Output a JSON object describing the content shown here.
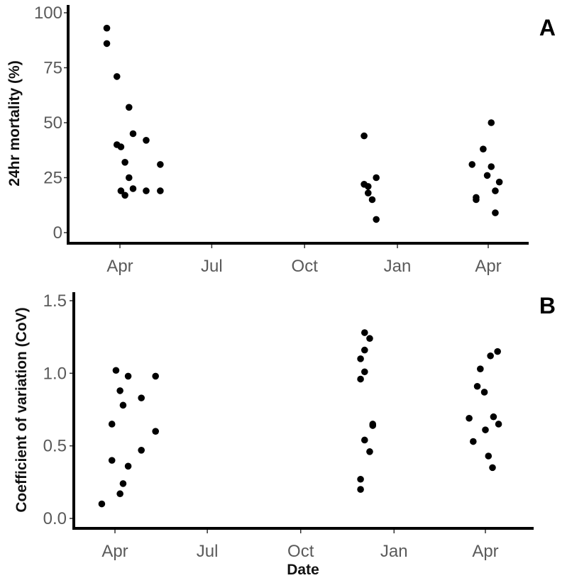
{
  "chart_data": [
    {
      "type": "scatter",
      "panel_label": "A",
      "xlabel": "",
      "ylabel": "24hr mortality (%)",
      "ylim": [
        -5,
        103
      ],
      "x_ticks": [
        "Apr",
        "Jul",
        "Oct",
        "Jan",
        "Apr"
      ],
      "y_ticks": [
        "0",
        "25",
        "50",
        "75",
        "100"
      ],
      "grid": false,
      "legend": "none",
      "points": [
        {
          "x": "2014-03-19",
          "y": 93
        },
        {
          "x": "2014-03-19",
          "y": 86
        },
        {
          "x": "2014-03-29",
          "y": 71
        },
        {
          "x": "2014-03-29",
          "y": 40
        },
        {
          "x": "2014-04-02",
          "y": 39
        },
        {
          "x": "2014-04-02",
          "y": 19
        },
        {
          "x": "2014-04-06",
          "y": 32
        },
        {
          "x": "2014-04-06",
          "y": 17
        },
        {
          "x": "2014-04-10",
          "y": 57
        },
        {
          "x": "2014-04-10",
          "y": 25
        },
        {
          "x": "2014-04-14",
          "y": 45
        },
        {
          "x": "2014-04-14",
          "y": 20
        },
        {
          "x": "2014-04-27",
          "y": 42
        },
        {
          "x": "2014-04-27",
          "y": 19
        },
        {
          "x": "2014-05-11",
          "y": 31
        },
        {
          "x": "2014-05-11",
          "y": 19
        },
        {
          "x": "2014-11-29",
          "y": 44
        },
        {
          "x": "2014-11-29",
          "y": 22
        },
        {
          "x": "2014-12-03",
          "y": 21
        },
        {
          "x": "2014-12-03",
          "y": 18
        },
        {
          "x": "2014-12-07",
          "y": 15
        },
        {
          "x": "2014-12-11",
          "y": 25
        },
        {
          "x": "2014-12-11",
          "y": 6
        },
        {
          "x": "2015-03-16",
          "y": 31
        },
        {
          "x": "2015-03-20",
          "y": 16
        },
        {
          "x": "2015-03-20",
          "y": 15
        },
        {
          "x": "2015-03-27",
          "y": 38
        },
        {
          "x": "2015-03-31",
          "y": 26
        },
        {
          "x": "2015-04-04",
          "y": 50
        },
        {
          "x": "2015-04-04",
          "y": 30
        },
        {
          "x": "2015-04-08",
          "y": 19
        },
        {
          "x": "2015-04-08",
          "y": 9
        },
        {
          "x": "2015-04-12",
          "y": 23
        }
      ]
    },
    {
      "type": "scatter",
      "panel_label": "B",
      "xlabel": "Date",
      "ylabel": "Coefficient of variation (CoV)",
      "ylim": [
        -0.05,
        1.55
      ],
      "x_ticks": [
        "Apr",
        "Jul",
        "Oct",
        "Jan",
        "Apr"
      ],
      "y_ticks": [
        "0.0",
        "0.5",
        "1.0",
        "1.5"
      ],
      "grid": false,
      "legend": "none",
      "points": [
        {
          "x": "2014-03-19",
          "y": 0.1
        },
        {
          "x": "2014-03-29",
          "y": 0.65
        },
        {
          "x": "2014-03-29",
          "y": 0.4
        },
        {
          "x": "2014-04-02",
          "y": 1.02
        },
        {
          "x": "2014-04-06",
          "y": 0.88
        },
        {
          "x": "2014-04-06",
          "y": 0.17
        },
        {
          "x": "2014-04-09",
          "y": 0.78
        },
        {
          "x": "2014-04-09",
          "y": 0.24
        },
        {
          "x": "2014-04-14",
          "y": 0.98
        },
        {
          "x": "2014-04-14",
          "y": 0.36
        },
        {
          "x": "2014-04-27",
          "y": 0.83
        },
        {
          "x": "2014-04-27",
          "y": 0.47
        },
        {
          "x": "2014-05-11",
          "y": 0.98
        },
        {
          "x": "2014-05-11",
          "y": 0.6
        },
        {
          "x": "2014-11-29",
          "y": 1.1
        },
        {
          "x": "2014-11-29",
          "y": 0.96
        },
        {
          "x": "2014-11-29",
          "y": 0.27
        },
        {
          "x": "2014-11-29",
          "y": 0.2
        },
        {
          "x": "2014-12-03",
          "y": 1.28
        },
        {
          "x": "2014-12-03",
          "y": 1.16
        },
        {
          "x": "2014-12-03",
          "y": 1.01
        },
        {
          "x": "2014-12-03",
          "y": 0.54
        },
        {
          "x": "2014-12-08",
          "y": 1.24
        },
        {
          "x": "2014-12-08",
          "y": 0.46
        },
        {
          "x": "2014-12-11",
          "y": 0.65
        },
        {
          "x": "2014-12-11",
          "y": 0.64
        },
        {
          "x": "2015-03-16",
          "y": 0.69
        },
        {
          "x": "2015-03-20",
          "y": 0.53
        },
        {
          "x": "2015-03-24",
          "y": 0.91
        },
        {
          "x": "2015-03-27",
          "y": 1.03
        },
        {
          "x": "2015-03-31",
          "y": 0.87
        },
        {
          "x": "2015-04-01",
          "y": 0.61
        },
        {
          "x": "2015-04-04",
          "y": 0.43
        },
        {
          "x": "2015-04-06",
          "y": 1.12
        },
        {
          "x": "2015-04-08",
          "y": 0.35
        },
        {
          "x": "2015-04-09",
          "y": 0.7
        },
        {
          "x": "2015-04-13",
          "y": 1.15
        },
        {
          "x": "2015-04-14",
          "y": 0.65
        }
      ]
    }
  ]
}
